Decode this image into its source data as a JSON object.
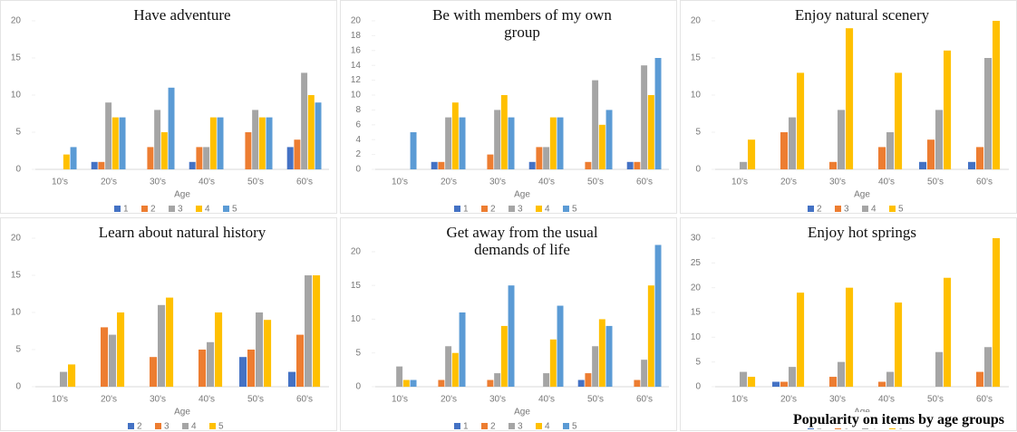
{
  "chart_data": [
    {
      "type": "bar",
      "title": "Have adventure",
      "xlabel": "Age",
      "categories": [
        "10's",
        "20's",
        "30's",
        "40's",
        "50's",
        "60's"
      ],
      "ylim": [
        0,
        20
      ],
      "yticks": [
        0,
        5,
        10,
        15,
        20
      ],
      "series": [
        {
          "name": "1",
          "color": "#4472c4",
          "values": [
            0,
            1,
            0,
            1,
            0,
            3
          ]
        },
        {
          "name": "2",
          "color": "#ed7d31",
          "values": [
            0,
            1,
            3,
            3,
            5,
            4
          ]
        },
        {
          "name": "3",
          "color": "#a5a5a5",
          "values": [
            0,
            9,
            8,
            3,
            8,
            13
          ]
        },
        {
          "name": "4",
          "color": "#ffc000",
          "values": [
            2,
            7,
            5,
            7,
            7,
            10
          ]
        },
        {
          "name": "5",
          "color": "#5b9bd5",
          "values": [
            3,
            7,
            11,
            7,
            7,
            9
          ]
        }
      ]
    },
    {
      "type": "bar",
      "title": "Be with members of my own group",
      "xlabel": "Age",
      "categories": [
        "10's",
        "20's",
        "30's",
        "40's",
        "50's",
        "60's"
      ],
      "ylim": [
        0,
        20
      ],
      "yticks": [
        0,
        2,
        4,
        6,
        8,
        10,
        12,
        14,
        16,
        18,
        20
      ],
      "series": [
        {
          "name": "1",
          "color": "#4472c4",
          "values": [
            0,
            1,
            0,
            1,
            0,
            1
          ]
        },
        {
          "name": "2",
          "color": "#ed7d31",
          "values": [
            0,
            1,
            2,
            3,
            1,
            1
          ]
        },
        {
          "name": "3",
          "color": "#a5a5a5",
          "values": [
            0,
            7,
            8,
            3,
            12,
            14
          ]
        },
        {
          "name": "4",
          "color": "#ffc000",
          "values": [
            0,
            9,
            10,
            7,
            6,
            10
          ]
        },
        {
          "name": "5",
          "color": "#5b9bd5",
          "values": [
            5,
            7,
            7,
            7,
            8,
            15
          ]
        }
      ]
    },
    {
      "type": "bar",
      "title": "Enjoy natural scenery",
      "xlabel": "Age",
      "categories": [
        "10's",
        "20's",
        "30's",
        "40's",
        "50's",
        "60's"
      ],
      "ylim": [
        0,
        20
      ],
      "yticks": [
        0,
        5,
        10,
        15,
        20
      ],
      "series": [
        {
          "name": "2",
          "color": "#4472c4",
          "values": [
            0,
            0,
            0,
            0,
            1,
            1
          ]
        },
        {
          "name": "3",
          "color": "#ed7d31",
          "values": [
            0,
            5,
            1,
            3,
            4,
            3
          ]
        },
        {
          "name": "4",
          "color": "#a5a5a5",
          "values": [
            1,
            7,
            8,
            5,
            8,
            15
          ]
        },
        {
          "name": "5",
          "color": "#ffc000",
          "values": [
            4,
            13,
            19,
            13,
            16,
            20
          ]
        }
      ]
    },
    {
      "type": "bar",
      "title": "Learn about natural history",
      "xlabel": "Age",
      "categories": [
        "10's",
        "20's",
        "30's",
        "40's",
        "50's",
        "60's"
      ],
      "ylim": [
        0,
        20
      ],
      "yticks": [
        0,
        5,
        10,
        15,
        20
      ],
      "series": [
        {
          "name": "2",
          "color": "#4472c4",
          "values": [
            0,
            0,
            0,
            0,
            4,
            2
          ]
        },
        {
          "name": "3",
          "color": "#ed7d31",
          "values": [
            0,
            8,
            4,
            5,
            5,
            7
          ]
        },
        {
          "name": "4",
          "color": "#a5a5a5",
          "values": [
            2,
            7,
            11,
            6,
            10,
            15
          ]
        },
        {
          "name": "5",
          "color": "#ffc000",
          "values": [
            3,
            10,
            12,
            10,
            9,
            15
          ]
        }
      ]
    },
    {
      "type": "bar",
      "title": "Get away from the usual demands of life",
      "xlabel": "Age",
      "categories": [
        "10's",
        "20's",
        "30's",
        "40's",
        "50's",
        "60's"
      ],
      "ylim": [
        0,
        22
      ],
      "yticks": [
        0,
        5,
        10,
        15,
        20
      ],
      "series": [
        {
          "name": "1",
          "color": "#4472c4",
          "values": [
            0,
            0,
            0,
            0,
            1,
            0
          ]
        },
        {
          "name": "2",
          "color": "#ed7d31",
          "values": [
            0,
            1,
            1,
            0,
            2,
            1
          ]
        },
        {
          "name": "3",
          "color": "#a5a5a5",
          "values": [
            3,
            6,
            2,
            2,
            6,
            4
          ]
        },
        {
          "name": "4",
          "color": "#ffc000",
          "values": [
            1,
            5,
            9,
            7,
            10,
            15
          ]
        },
        {
          "name": "5",
          "color": "#5b9bd5",
          "values": [
            1,
            11,
            15,
            12,
            9,
            21
          ]
        }
      ]
    },
    {
      "type": "bar",
      "title": "Enjoy hot springs",
      "xlabel": "Age",
      "categories": [
        "10's",
        "20's",
        "30's",
        "40's",
        "50's",
        "60's"
      ],
      "ylim": [
        0,
        30
      ],
      "yticks": [
        0,
        5,
        10,
        15,
        20,
        25,
        30
      ],
      "series": [
        {
          "name": "2",
          "color": "#4472c4",
          "values": [
            0,
            1,
            0,
            0,
            0,
            0
          ]
        },
        {
          "name": "3",
          "color": "#ed7d31",
          "values": [
            0,
            1,
            2,
            1,
            0,
            3
          ]
        },
        {
          "name": "4",
          "color": "#a5a5a5",
          "values": [
            3,
            4,
            5,
            3,
            7,
            8
          ]
        },
        {
          "name": "5",
          "color": "#ffc000",
          "values": [
            2,
            19,
            20,
            17,
            22,
            30
          ]
        }
      ]
    }
  ],
  "caption": "Popularity on items by age groups"
}
